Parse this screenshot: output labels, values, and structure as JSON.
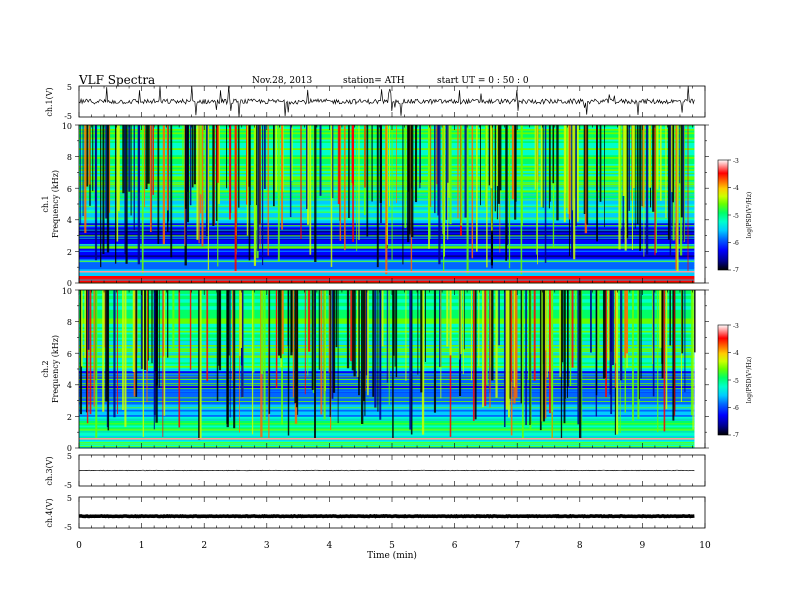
{
  "header": {
    "title": "VLF  Spectra",
    "date": "Nov.28, 2013",
    "station": "station= ATH",
    "start": "start  UT =   0 : 50 : 0"
  },
  "colors": {
    "spectrogram_scale": [
      "#000000",
      "#00008b",
      "#0000ff",
      "#0066ff",
      "#00ccff",
      "#00ffcc",
      "#00ff66",
      "#66ff00",
      "#ccff00",
      "#ffcc00",
      "#ff6600",
      "#ff0000",
      "#ff9999",
      "#ffffff"
    ],
    "trace": "#000000"
  },
  "chart_data": [
    {
      "type": "line",
      "panel": "ch1-waveform",
      "ylabel": "ch.1(V)",
      "ylim": [
        -5,
        5
      ],
      "y_ticks": [
        "5",
        "-5"
      ],
      "xlim": [
        0,
        10
      ],
      "x_end": 9.83,
      "baseline": 0,
      "notes": "continuous noisy voltage trace near 0 V with spikes"
    },
    {
      "type": "heatmap",
      "panel": "ch1-spectrogram",
      "ylabel_channel": "ch.1",
      "ylabel": "Frequency  (kHz)",
      "ylim": [
        0,
        10
      ],
      "y_ticks": [
        "0",
        "2",
        "4",
        "6",
        "8",
        "10"
      ],
      "xlim": [
        0,
        10
      ],
      "x_end": 9.83,
      "colorbar": {
        "label": "log(PSD(V²/Hz)",
        "range": [
          -7,
          -3
        ],
        "ticks": [
          "-3",
          "-4",
          "-5",
          "-6",
          "-7"
        ]
      }
    },
    {
      "type": "heatmap",
      "panel": "ch2-spectrogram",
      "ylabel_channel": "ch.2",
      "ylabel": "Frequency  (kHz)",
      "ylim": [
        0,
        10
      ],
      "y_ticks": [
        "0",
        "2",
        "4",
        "6",
        "8",
        "10"
      ],
      "xlim": [
        0,
        10
      ],
      "x_end": 9.83,
      "colorbar": {
        "label": "log(PSD(V²/Hz)",
        "range": [
          -7,
          -3
        ],
        "ticks": [
          "-3",
          "-4",
          "-5",
          "-6",
          "-7"
        ]
      }
    },
    {
      "type": "line",
      "panel": "ch3-waveform",
      "ylabel": "ch.3(V)",
      "ylim": [
        -5,
        5
      ],
      "y_ticks": [
        "5",
        "-5"
      ],
      "xlim": [
        0,
        10
      ],
      "x_end": 9.83,
      "baseline": 0
    },
    {
      "type": "line",
      "panel": "ch4-waveform",
      "ylabel": "ch.4(V)",
      "ylim": [
        -5,
        5
      ],
      "y_ticks": [
        "5",
        "-5"
      ],
      "xlim": [
        0,
        10
      ],
      "x_end": 9.83,
      "baseline": -1.2,
      "notes": "thick flat trace"
    }
  ],
  "xaxis": {
    "label": "Time  (min)",
    "ticks": [
      "0",
      "1",
      "2",
      "3",
      "4",
      "5",
      "6",
      "7",
      "8",
      "9",
      "10"
    ]
  }
}
